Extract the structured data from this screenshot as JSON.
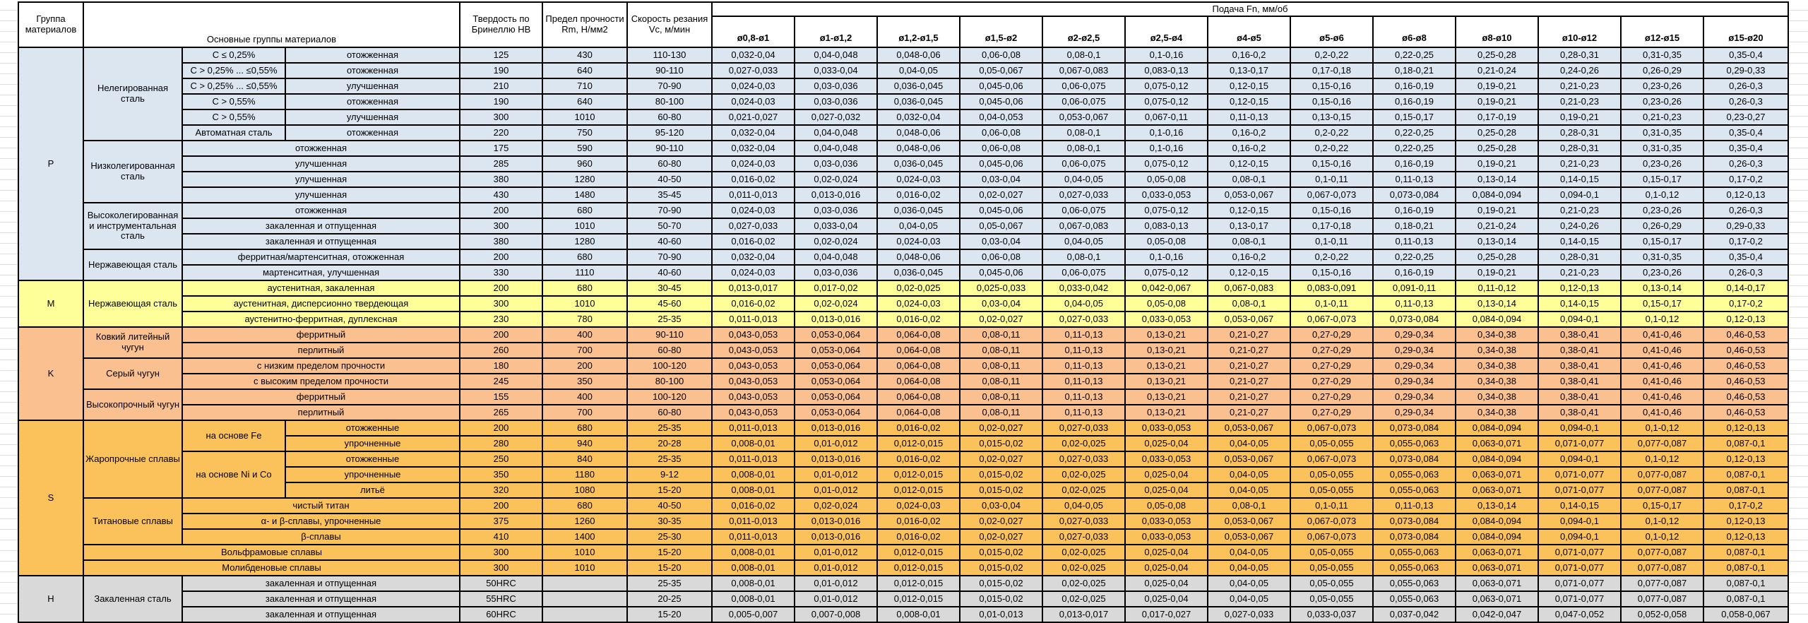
{
  "table": {
    "headers": {
      "group": "Группа материалов",
      "main_groups": "Основные группы материалов",
      "hardness": "Твердость по Бринеллю HB",
      "strength": "Предел прочности Rm, Н/мм2",
      "speed": "Скорость резания Vc, м/мин",
      "feed": "Подача Fn, мм/об",
      "diameters": [
        "ø0,8-ø1",
        "ø1-ø1,2",
        "ø1,2-ø1,5",
        "ø1,5-ø2",
        "ø2-ø2,5",
        "ø2,5-ø4",
        "ø4-ø5",
        "ø5-ø6",
        "ø6-ø8",
        "ø8-ø10",
        "ø10-ø12",
        "ø12-ø15",
        "ø15-ø20"
      ]
    },
    "feed_sets": {
      "F1": [
        "0,032-0,04",
        "0,04-0,048",
        "0,048-0,06",
        "0,06-0,08",
        "0,08-0,1",
        "0,1-0,16",
        "0,16-0,2",
        "0,2-0,22",
        "0,22-0,25",
        "0,25-0,28",
        "0,28-0,31",
        "0,31-0,35",
        "0,35-0,4"
      ],
      "F2": [
        "0,027-0,033",
        "0,033-0,04",
        "0,04-0,05",
        "0,05-0,067",
        "0,067-0,083",
        "0,083-0,13",
        "0,13-0,17",
        "0,17-0,18",
        "0,18-0,21",
        "0,21-0,24",
        "0,24-0,26",
        "0,26-0,29",
        "0,29-0,33"
      ],
      "F3": [
        "0,024-0,03",
        "0,03-0,036",
        "0,036-0,045",
        "0,045-0,06",
        "0,06-0,075",
        "0,075-0,12",
        "0,12-0,15",
        "0,15-0,16",
        "0,16-0,19",
        "0,19-0,21",
        "0,21-0,23",
        "0,23-0,26",
        "0,26-0,3"
      ],
      "F4": [
        "0,021-0,027",
        "0,027-0,032",
        "0,032-0,04",
        "0,04-0,053",
        "0,053-0,067",
        "0,067-0,11",
        "0,11-0,13",
        "0,13-0,15",
        "0,15-0,17",
        "0,17-0,19",
        "0,19-0,21",
        "0,21-0,23",
        "0,23-0,27"
      ],
      "F5": [
        "0,016-0,02",
        "0,02-0,024",
        "0,024-0,03",
        "0,03-0,04",
        "0,04-0,05",
        "0,05-0,08",
        "0,08-0,1",
        "0,1-0,11",
        "0,11-0,13",
        "0,13-0,14",
        "0,14-0,15",
        "0,15-0,17",
        "0,17-0,2"
      ],
      "F6": [
        "0,011-0,013",
        "0,013-0,016",
        "0,016-0,02",
        "0,02-0,027",
        "0,027-0,033",
        "0,033-0,053",
        "0,053-0,067",
        "0,067-0,073",
        "0,073-0,084",
        "0,084-0,094",
        "0,094-0,1",
        "0,1-0,12",
        "0,12-0,13"
      ],
      "F7": [
        "0,013-0,017",
        "0,017-0,02",
        "0,02-0,025",
        "0,025-0,033",
        "0,033-0,042",
        "0,042-0,067",
        "0,067-0,083",
        "0,083-0,091",
        "0,091-0,11",
        "0,11-0,12",
        "0,12-0,13",
        "0,13-0,14",
        "0,14-0,17"
      ],
      "F8": [
        "0,043-0,053",
        "0,053-0,064",
        "0,064-0,08",
        "0,08-0,11",
        "0,11-0,13",
        "0,13-0,21",
        "0,21-0,27",
        "0,27-0,29",
        "0,29-0,34",
        "0,34-0,38",
        "0,38-0,41",
        "0,41-0,46",
        "0,46-0,53"
      ],
      "F9": [
        "0,008-0,01",
        "0,01-0,012",
        "0,012-0,015",
        "0,015-0,02",
        "0,02-0,025",
        "0,025-0,04",
        "0,04-0,05",
        "0,05-0,055",
        "0,055-0,063",
        "0,063-0,071",
        "0,071-0,077",
        "0,077-0,087",
        "0,087-0,1"
      ],
      "F10": [
        "0,005-0,007",
        "0,007-0,008",
        "0,008-0,01",
        "0,01-0,013",
        "0,013-0,017",
        "0,017-0,027",
        "0,027-0,033",
        "0,033-0,037",
        "0,037-0,042",
        "0,042-0,047",
        "0,047-0,052",
        "0,052-0,058",
        "0,058-0,067"
      ]
    },
    "sections": [
      {
        "group": "P",
        "color": "#DCE6F1",
        "rows": [
          {
            "labels": [
              {
                "t": "Нелегированная сталь",
                "rs": 6
              },
              {
                "t": "C ≤ 0,25%"
              },
              {
                "t": "отожженная"
              }
            ],
            "hb": "125",
            "rm": "430",
            "vc": "110-130",
            "feeds": "F1"
          },
          {
            "labels": [
              {
                "t": "C > 0,25% ... ≤0,55%"
              },
              {
                "t": "отожженная"
              }
            ],
            "hb": "190",
            "rm": "640",
            "vc": "90-110",
            "feeds": "F2"
          },
          {
            "labels": [
              {
                "t": "C > 0,25% ... ≤0,55%"
              },
              {
                "t": "улучшенная"
              }
            ],
            "hb": "210",
            "rm": "710",
            "vc": "70-90",
            "feeds": "F3"
          },
          {
            "labels": [
              {
                "t": "C > 0,55%"
              },
              {
                "t": "отожженная"
              }
            ],
            "hb": "190",
            "rm": "640",
            "vc": "80-100",
            "feeds": "F3"
          },
          {
            "labels": [
              {
                "t": "C > 0,55%"
              },
              {
                "t": "улучшенная"
              }
            ],
            "hb": "300",
            "rm": "1010",
            "vc": "60-80",
            "feeds": "F4"
          },
          {
            "labels": [
              {
                "t": "Автоматная сталь"
              },
              {
                "t": "отожженная"
              }
            ],
            "hb": "220",
            "rm": "750",
            "vc": "95-120",
            "feeds": "F1"
          },
          {
            "labels": [
              {
                "t": "Низколегированная сталь",
                "rs": 4
              },
              {
                "t": "отожженная",
                "cs": 2
              }
            ],
            "hb": "175",
            "rm": "590",
            "vc": "90-110",
            "feeds": "F1"
          },
          {
            "labels": [
              {
                "t": "улучшенная",
                "cs": 2
              }
            ],
            "hb": "285",
            "rm": "960",
            "vc": "60-80",
            "feeds": "F3"
          },
          {
            "labels": [
              {
                "t": "улучшенная",
                "cs": 2
              }
            ],
            "hb": "380",
            "rm": "1280",
            "vc": "40-50",
            "feeds": "F5"
          },
          {
            "labels": [
              {
                "t": "улучшенная",
                "cs": 2
              }
            ],
            "hb": "430",
            "rm": "1480",
            "vc": "35-45",
            "feeds": "F6"
          },
          {
            "labels": [
              {
                "t": "Высоколегированная и инструментальная сталь",
                "rs": 3
              },
              {
                "t": "отожженная",
                "cs": 2
              }
            ],
            "hb": "200",
            "rm": "680",
            "vc": "70-90",
            "feeds": "F3"
          },
          {
            "labels": [
              {
                "t": "закаленная и отпущенная",
                "cs": 2
              }
            ],
            "hb": "300",
            "rm": "1010",
            "vc": "50-70",
            "feeds": "F2"
          },
          {
            "labels": [
              {
                "t": "закаленная и отпущенная",
                "cs": 2
              }
            ],
            "hb": "380",
            "rm": "1280",
            "vc": "40-60",
            "feeds": "F5"
          },
          {
            "labels": [
              {
                "t": "Нержавеющая сталь",
                "rs": 2
              },
              {
                "t": "ферритная/мартенситная, отожженная",
                "cs": 2
              }
            ],
            "hb": "200",
            "rm": "680",
            "vc": "70-90",
            "feeds": "F1"
          },
          {
            "labels": [
              {
                "t": "мартенситная, улучшенная",
                "cs": 2
              }
            ],
            "hb": "330",
            "rm": "1110",
            "vc": "40-60",
            "feeds": "F3"
          }
        ]
      },
      {
        "group": "M",
        "color": "#FFFF99",
        "rows": [
          {
            "labels": [
              {
                "t": "Нержавеющая сталь",
                "rs": 3
              },
              {
                "t": "аустенитная, закаленная",
                "cs": 2
              }
            ],
            "hb": "200",
            "rm": "680",
            "vc": "30-45",
            "feeds": "F7"
          },
          {
            "labels": [
              {
                "t": "аустенитная, дисперсионно твердеющая",
                "cs": 2
              }
            ],
            "hb": "300",
            "rm": "1010",
            "vc": "45-60",
            "feeds": "F5"
          },
          {
            "labels": [
              {
                "t": "аустенитно-ферритная, дуплексная",
                "cs": 2
              }
            ],
            "hb": "230",
            "rm": "780",
            "vc": "25-35",
            "feeds": "F6"
          }
        ]
      },
      {
        "group": "K",
        "color": "#FAC090",
        "rows": [
          {
            "labels": [
              {
                "t": "Ковкий литейный чугун",
                "rs": 2
              },
              {
                "t": "ферритный",
                "cs": 2
              }
            ],
            "hb": "200",
            "rm": "400",
            "vc": "90-110",
            "feeds": "F8"
          },
          {
            "labels": [
              {
                "t": "перлитный",
                "cs": 2
              }
            ],
            "hb": "260",
            "rm": "700",
            "vc": "60-80",
            "feeds": "F8"
          },
          {
            "labels": [
              {
                "t": "Серый чугун",
                "rs": 2
              },
              {
                "t": "с низким пределом прочности",
                "cs": 2
              }
            ],
            "hb": "180",
            "rm": "200",
            "vc": "100-120",
            "feeds": "F8"
          },
          {
            "labels": [
              {
                "t": "с высоким пределом прочности",
                "cs": 2
              }
            ],
            "hb": "245",
            "rm": "350",
            "vc": "80-100",
            "feeds": "F8"
          },
          {
            "labels": [
              {
                "t": "Высокопрочный чугун",
                "rs": 2
              },
              {
                "t": "ферритный",
                "cs": 2
              }
            ],
            "hb": "155",
            "rm": "400",
            "vc": "100-120",
            "feeds": "F8"
          },
          {
            "labels": [
              {
                "t": "перлитный",
                "cs": 2
              }
            ],
            "hb": "265",
            "rm": "700",
            "vc": "60-80",
            "feeds": "F8"
          }
        ]
      },
      {
        "group": "S",
        "color": "#FBC15B",
        "rows": [
          {
            "labels": [
              {
                "t": "Жаропрочные сплавы",
                "rs": 5
              },
              {
                "t": "на основе Fe",
                "rs": 2
              },
              {
                "t": "отожженные"
              }
            ],
            "hb": "200",
            "rm": "680",
            "vc": "25-35",
            "feeds": "F6"
          },
          {
            "labels": [
              {
                "t": "упрочненные"
              }
            ],
            "hb": "280",
            "rm": "940",
            "vc": "20-28",
            "feeds": "F9"
          },
          {
            "labels": [
              {
                "t": "на основе Ni и Co",
                "rs": 3
              },
              {
                "t": "отожженные"
              }
            ],
            "hb": "250",
            "rm": "840",
            "vc": "25-35",
            "feeds": "F6"
          },
          {
            "labels": [
              {
                "t": "упрочненные"
              }
            ],
            "hb": "350",
            "rm": "1180",
            "vc": "9-12",
            "feeds": "F9"
          },
          {
            "labels": [
              {
                "t": "литьё"
              }
            ],
            "hb": "320",
            "rm": "1080",
            "vc": "15-20",
            "feeds": "F9"
          },
          {
            "labels": [
              {
                "t": "Титановые сплавы",
                "rs": 3
              },
              {
                "t": "чистый титан",
                "cs": 2
              }
            ],
            "hb": "200",
            "rm": "680",
            "vc": "40-50",
            "feeds": "F5"
          },
          {
            "labels": [
              {
                "t": "α- и β-сплавы, упрочненные",
                "cs": 2
              }
            ],
            "hb": "375",
            "rm": "1260",
            "vc": "30-35",
            "feeds": "F6"
          },
          {
            "labels": [
              {
                "t": "β-сплавы",
                "cs": 2
              }
            ],
            "hb": "410",
            "rm": "1400",
            "vc": "25-30",
            "feeds": "F6"
          },
          {
            "labels": [
              {
                "t": "Вольфрамовые сплавы",
                "cs": 3
              }
            ],
            "hb": "300",
            "rm": "1010",
            "vc": "15-20",
            "feeds": "F9"
          },
          {
            "labels": [
              {
                "t": "Молибденовые сплавы",
                "cs": 3
              }
            ],
            "hb": "300",
            "rm": "1010",
            "vc": "15-20",
            "feeds": "F9"
          }
        ]
      },
      {
        "group": "H",
        "color": "#D9D9D9",
        "rows": [
          {
            "labels": [
              {
                "t": "Закаленная сталь",
                "rs": 3
              },
              {
                "t": "закаленная и отпущенная",
                "cs": 2
              }
            ],
            "hb": "50HRC",
            "rm": "",
            "vc": "25-35",
            "feeds": "F9"
          },
          {
            "labels": [
              {
                "t": "закаленная и отпущенная",
                "cs": 2
              }
            ],
            "hb": "55HRC",
            "rm": "",
            "vc": "20-25",
            "feeds": "F9"
          },
          {
            "labels": [
              {
                "t": "закаленная и отпущенная",
                "cs": 2
              }
            ],
            "hb": "60HRC",
            "rm": "",
            "vc": "15-20",
            "feeds": "F10"
          }
        ]
      }
    ]
  }
}
